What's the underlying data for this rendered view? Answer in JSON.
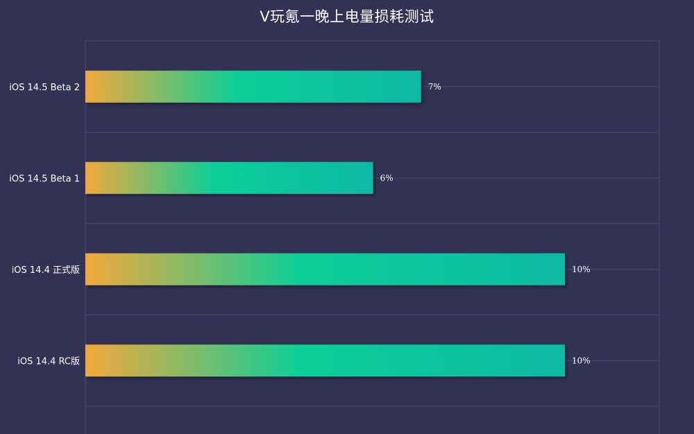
{
  "chart_data": {
    "type": "bar",
    "orientation": "horizontal",
    "title": "V玩氪一晚上电量损耗测试",
    "categories": [
      "iOS 14.5  Beta 2",
      "iOS 14.5  Beta 1",
      "iOS 14.4 正式版",
      "iOS 14.4 RC版"
    ],
    "values": [
      7,
      6,
      10,
      10
    ],
    "value_labels": [
      "7%",
      "6%",
      "10%",
      "10%"
    ],
    "xlim": [
      0,
      12
    ],
    "grid": true,
    "legend": "none"
  },
  "colors": {
    "background": "#343254",
    "grid": "#4a4870",
    "bar_gradient": [
      "#f2a93b",
      "#0bcf97",
      "#0ab9a5"
    ]
  }
}
